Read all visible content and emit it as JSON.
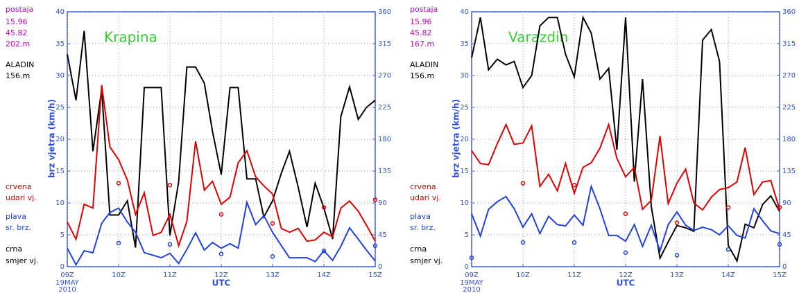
{
  "chart_data": [
    {
      "type": "line",
      "title": "Krapina",
      "ylabel": "brz vjetra (km/h)",
      "xlabel": "UTC",
      "date": [
        "19MAY",
        "2010"
      ],
      "annotations": [
        {
          "text": "postaja",
          "color": "#c000c0"
        },
        {
          "text": "15.96",
          "color": "#c000c0"
        },
        {
          "text": "45.82",
          "color": "#c000c0"
        },
        {
          "text": "202.m",
          "color": "#c000c0"
        },
        {
          "text": "ALADIN",
          "color": "#000000"
        },
        {
          "text": "156.m",
          "color": "#000000"
        },
        {
          "text": "crvena",
          "color": "#e00000"
        },
        {
          "text": "udari vj.",
          "color": "#e00000"
        },
        {
          "text": "plava",
          "color": "#2040e0"
        },
        {
          "text": "sr. brz.",
          "color": "#2040e0"
        },
        {
          "text": "crna",
          "color": "#000000"
        },
        {
          "text": "smjer vj.",
          "color": "#000000"
        }
      ],
      "x": [
        9,
        9.17,
        9.33,
        9.5,
        9.67,
        9.83,
        10,
        10.17,
        10.33,
        10.5,
        10.67,
        10.83,
        11,
        11.17,
        11.33,
        11.5,
        11.67,
        11.83,
        12,
        12.17,
        12.33,
        12.5,
        12.67,
        12.83,
        13,
        13.17,
        13.33,
        13.5,
        13.67,
        13.83,
        14,
        14.17,
        14.33,
        14.5,
        14.67,
        14.83,
        15
      ],
      "xlim": [
        9,
        15
      ],
      "xticks": [
        {
          "value": 9,
          "label": "09Z"
        },
        {
          "value": 10,
          "label": "10Z"
        },
        {
          "value": 11,
          "label": "11Z"
        },
        {
          "value": 12,
          "label": "12Z"
        },
        {
          "value": 13,
          "label": "13Z"
        },
        {
          "value": 14,
          "label": "14Z"
        },
        {
          "value": 15,
          "label": "15Z"
        }
      ],
      "ylim": [
        0,
        40
      ],
      "yticks": [
        0,
        5,
        10,
        15,
        20,
        25,
        30,
        35,
        40
      ],
      "y2lim": [
        0,
        360
      ],
      "y2ticks": [
        0,
        45,
        90,
        135,
        180,
        225,
        270,
        315,
        360
      ],
      "grid": true,
      "series": [
        {
          "color": "#000000",
          "axis": "y2",
          "values": [
            300,
            235,
            333,
            163,
            250,
            73,
            73,
            93,
            27,
            253,
            253,
            253,
            44,
            120,
            282,
            282,
            259,
            191,
            130,
            253,
            253,
            124,
            124,
            70,
            93,
            132,
            163,
            112,
            56,
            118,
            83,
            39,
            212,
            254,
            208,
            225,
            235
          ]
        },
        {
          "color": "#e00000",
          "values": [
            7,
            4.3,
            9.8,
            9.2,
            28.5,
            18.8,
            16.8,
            13.6,
            8.2,
            11.6,
            4.9,
            5.4,
            8.2,
            3.3,
            7.1,
            19.7,
            12,
            13.4,
            9.8,
            10.9,
            16.3,
            18.2,
            14.1,
            12.7,
            11.4,
            6,
            5.4,
            6,
            4,
            4.2,
            5.4,
            4.7,
            9.2,
            10.3,
            8.7,
            6.5,
            4
          ]
        },
        {
          "color": "#2040e0",
          "values": [
            2.9,
            0.3,
            2.5,
            2.2,
            6.8,
            8.5,
            9.2,
            7,
            5.4,
            2.2,
            1.8,
            1.4,
            2.1,
            0.5,
            2.7,
            5.3,
            2.6,
            3.8,
            2.9,
            3.6,
            2.9,
            10.1,
            6.6,
            8,
            5.4,
            3.3,
            1.4,
            1.4,
            1.4,
            0.8,
            2.5,
            1,
            3.2,
            6.1,
            4.3,
            2.6,
            0.9
          ]
        },
        {
          "color": "#e00000",
          "style": "markers",
          "x": [
            10,
            11,
            12,
            13,
            14,
            15
          ],
          "values": [
            13.1,
            12.8,
            8.2,
            6.8,
            9.3,
            10.5
          ]
        },
        {
          "color": "#2040e0",
          "style": "markers",
          "x": [
            10,
            11,
            12,
            13,
            14,
            15
          ],
          "values": [
            3.7,
            3.5,
            2.0,
            1.6,
            2.5,
            3.3
          ]
        }
      ]
    },
    {
      "type": "line",
      "title": "Varazdin",
      "ylabel": "brz vjetra (km/h)",
      "xlabel": "UTC",
      "date": [
        "19MAY",
        "2010"
      ],
      "annotations": [
        {
          "text": "postaja",
          "color": "#c000c0"
        },
        {
          "text": "15.96",
          "color": "#c000c0"
        },
        {
          "text": "45.82",
          "color": "#c000c0"
        },
        {
          "text": "167.m",
          "color": "#c000c0"
        },
        {
          "text": "ALADIN",
          "color": "#000000"
        },
        {
          "text": "156.m",
          "color": "#000000"
        },
        {
          "text": "crvena",
          "color": "#e00000"
        },
        {
          "text": "udari vj.",
          "color": "#e00000"
        },
        {
          "text": "plava",
          "color": "#2040e0"
        },
        {
          "text": "sr. brz.",
          "color": "#2040e0"
        },
        {
          "text": "crna",
          "color": "#000000"
        },
        {
          "text": "smjer vj.",
          "color": "#000000"
        }
      ],
      "x": [
        9,
        9.17,
        9.33,
        9.5,
        9.67,
        9.83,
        10,
        10.17,
        10.33,
        10.5,
        10.67,
        10.83,
        11,
        11.17,
        11.33,
        11.5,
        11.67,
        11.83,
        12,
        12.17,
        12.33,
        12.5,
        12.67,
        12.83,
        13,
        13.17,
        13.33,
        13.5,
        13.67,
        13.83,
        14,
        14.17,
        14.33,
        14.5,
        14.67,
        14.83,
        15
      ],
      "xlim": [
        9,
        15
      ],
      "xticks": [
        {
          "value": 9,
          "label": "09Z"
        },
        {
          "value": 10,
          "label": "10Z"
        },
        {
          "value": 11,
          "label": "11Z"
        },
        {
          "value": 12,
          "label": "12Z"
        },
        {
          "value": 13,
          "label": "13Z"
        },
        {
          "value": 14,
          "label": "14Z"
        },
        {
          "value": 15,
          "label": "15Z"
        }
      ],
      "ylim": [
        0,
        40
      ],
      "yticks": [
        0,
        5,
        10,
        15,
        20,
        25,
        30,
        35,
        40
      ],
      "y2lim": [
        0,
        360
      ],
      "y2ticks": [
        0,
        45,
        90,
        135,
        180,
        225,
        270,
        315,
        360
      ],
      "grid": true,
      "series": [
        {
          "color": "#000000",
          "axis": "y2",
          "values": [
            295,
            352,
            278,
            293,
            285,
            290,
            253,
            270,
            340,
            352,
            352,
            300,
            268,
            352,
            330,
            265,
            280,
            165,
            352,
            120,
            265,
            85,
            12,
            35,
            58,
            55,
            50,
            320,
            335,
            290,
            30,
            8,
            60,
            55,
            88,
            100,
            78
          ]
        },
        {
          "color": "#e00000",
          "values": [
            18.2,
            16.2,
            16,
            19.3,
            22.3,
            19.2,
            19.4,
            22.1,
            12.6,
            14.5,
            11.9,
            16.2,
            11.5,
            15.6,
            16.3,
            18.6,
            22.3,
            17,
            14.1,
            15.6,
            9,
            10.4,
            20.5,
            9.9,
            13.1,
            15.3,
            10,
            8.9,
            10.9,
            12.1,
            12.4,
            13.3,
            18.7,
            11.3,
            13.3,
            13.5,
            9
          ]
        },
        {
          "color": "#2040e0",
          "values": [
            8.3,
            4.8,
            9,
            10.2,
            11,
            9.1,
            6.2,
            8.3,
            5.2,
            7.9,
            6.6,
            6.4,
            8.1,
            6.5,
            12.6,
            9.1,
            4.9,
            4.9,
            4,
            6.6,
            3.2,
            6.5,
            2.5,
            6.6,
            8.6,
            6.5,
            5.7,
            6.2,
            5.8,
            5,
            6.4,
            4.9,
            4.5,
            9.1,
            7.2,
            5.6,
            5.2
          ]
        },
        {
          "color": "#e00000",
          "style": "markers",
          "x": [
            10,
            11,
            12,
            13,
            14,
            15
          ],
          "values": [
            13.1,
            12.8,
            8.3,
            6.9,
            9.3,
            9.3
          ]
        },
        {
          "color": "#2040e0",
          "style": "markers",
          "x": [
            9,
            10,
            11,
            12,
            13,
            14,
            15
          ],
          "values": [
            1.4,
            3.8,
            3.8,
            2.2,
            1.8,
            2.7,
            3.5
          ]
        }
      ]
    }
  ]
}
